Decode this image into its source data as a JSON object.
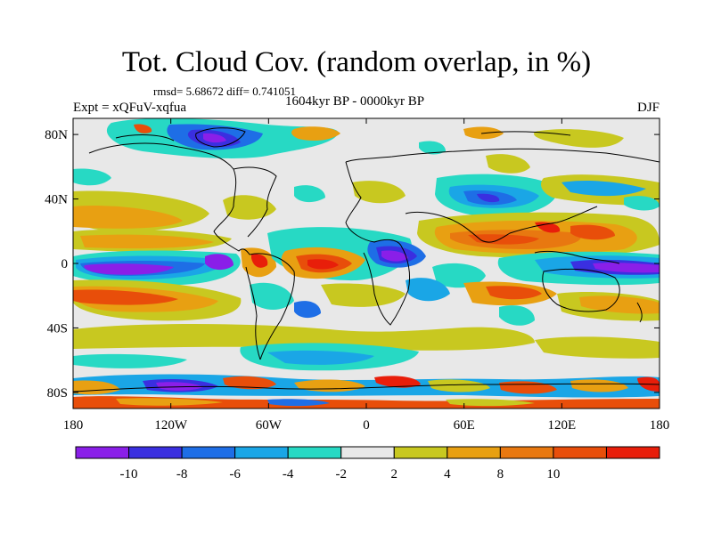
{
  "title": "Tot. Cloud Cov. (random overlap, in %)",
  "stats_text": "rmsd= 5.68672 diff= 0.741051",
  "period": "1604kyr BP - 0000kyr BP",
  "experiment": "Expt = xQFuV-xqfua",
  "season": "DJF",
  "map": {
    "lon_ticks": [
      "180",
      "120W",
      "60W",
      "0",
      "60E",
      "120E",
      "180"
    ],
    "lat_ticks": [
      "80N",
      "40N",
      "0",
      "40S",
      "80S"
    ],
    "background_color": "#e8e8e8"
  },
  "colorbar": {
    "colors": [
      "#8a1fe8",
      "#3a2fe0",
      "#1e6ee6",
      "#1aa6e6",
      "#27d9c4",
      "#e8e8e8",
      "#c8c820",
      "#e8a012",
      "#e87810",
      "#e84e0a",
      "#e81e0a"
    ],
    "labels": [
      "-10",
      "-8",
      "-6",
      "-4",
      "-2",
      "2",
      "4",
      "8",
      "10"
    ]
  }
}
